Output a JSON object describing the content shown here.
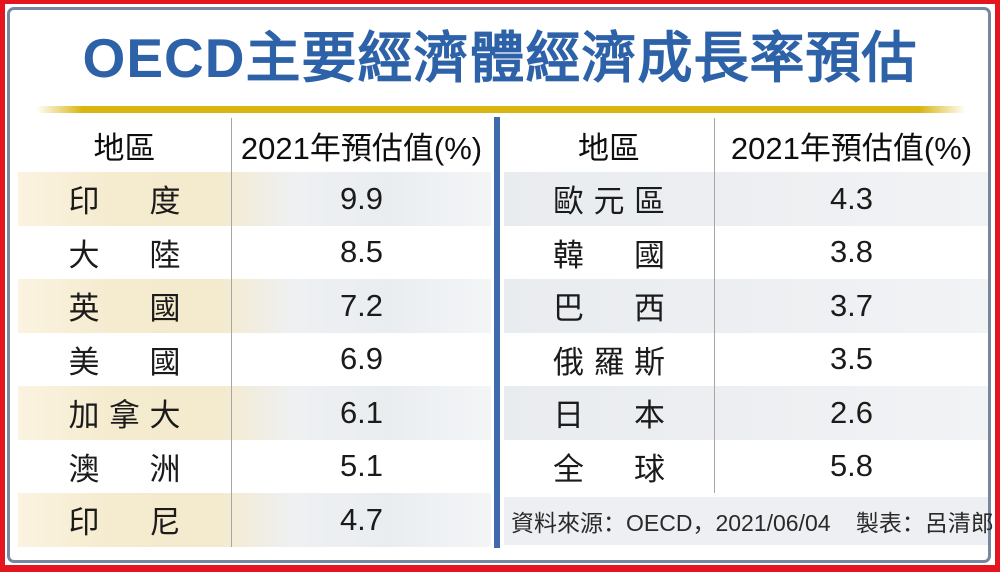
{
  "title": "OECD主要經濟體經濟成長率預估",
  "colors": {
    "frame_red": "#e5151f",
    "frame_slate": "#75889f",
    "title_blue": "#2d61a8",
    "gold_rule": "#d9b511",
    "center_divider_blue": "#3f6aab",
    "left_row_cream": "#f4eacd",
    "shaded_row_gray": "#eaedf0",
    "footer_bg": "#edeff2",
    "column_divider_gray": "#a6a79f"
  },
  "tables": [
    {
      "headers": {
        "region": "地區",
        "value": "2021年預估值(%)"
      },
      "rows": [
        {
          "region": "印度",
          "value": "9.9"
        },
        {
          "region": "大陸",
          "value": "8.5"
        },
        {
          "region": "英國",
          "value": "7.2"
        },
        {
          "region": "美國",
          "value": "6.9"
        },
        {
          "region": "加拿大",
          "value": "6.1"
        },
        {
          "region": "澳洲",
          "value": "5.1"
        },
        {
          "region": "印尼",
          "value": "4.7"
        }
      ]
    },
    {
      "headers": {
        "region": "地區",
        "value": "2021年預估值(%)"
      },
      "rows": [
        {
          "region": "歐元區",
          "value": "4.3"
        },
        {
          "region": "韓國",
          "value": "3.8"
        },
        {
          "region": "巴西",
          "value": "3.7"
        },
        {
          "region": "俄羅斯",
          "value": "3.5"
        },
        {
          "region": "日本",
          "value": "2.6"
        },
        {
          "region": "全球",
          "value": "5.8"
        }
      ]
    }
  ],
  "footer": {
    "source": "資料來源：OECD，2021/06/04",
    "author": "製表：呂清郎"
  },
  "chart_data": [
    {
      "type": "table",
      "title": "OECD主要經濟體經濟成長率預估",
      "columns": [
        "地區",
        "2021年預估值(%)"
      ],
      "rows": [
        [
          "印度",
          9.9
        ],
        [
          "大陸",
          8.5
        ],
        [
          "英國",
          7.2
        ],
        [
          "美國",
          6.9
        ],
        [
          "加拿大",
          6.1
        ],
        [
          "澳洲",
          5.1
        ],
        [
          "印尼",
          4.7
        ]
      ]
    },
    {
      "type": "table",
      "title": "OECD主要經濟體經濟成長率預估",
      "columns": [
        "地區",
        "2021年預估值(%)"
      ],
      "rows": [
        [
          "歐元區",
          4.3
        ],
        [
          "韓國",
          3.8
        ],
        [
          "巴西",
          3.7
        ],
        [
          "俄羅斯",
          3.5
        ],
        [
          "日本",
          2.6
        ],
        [
          "全球",
          5.8
        ]
      ]
    }
  ]
}
